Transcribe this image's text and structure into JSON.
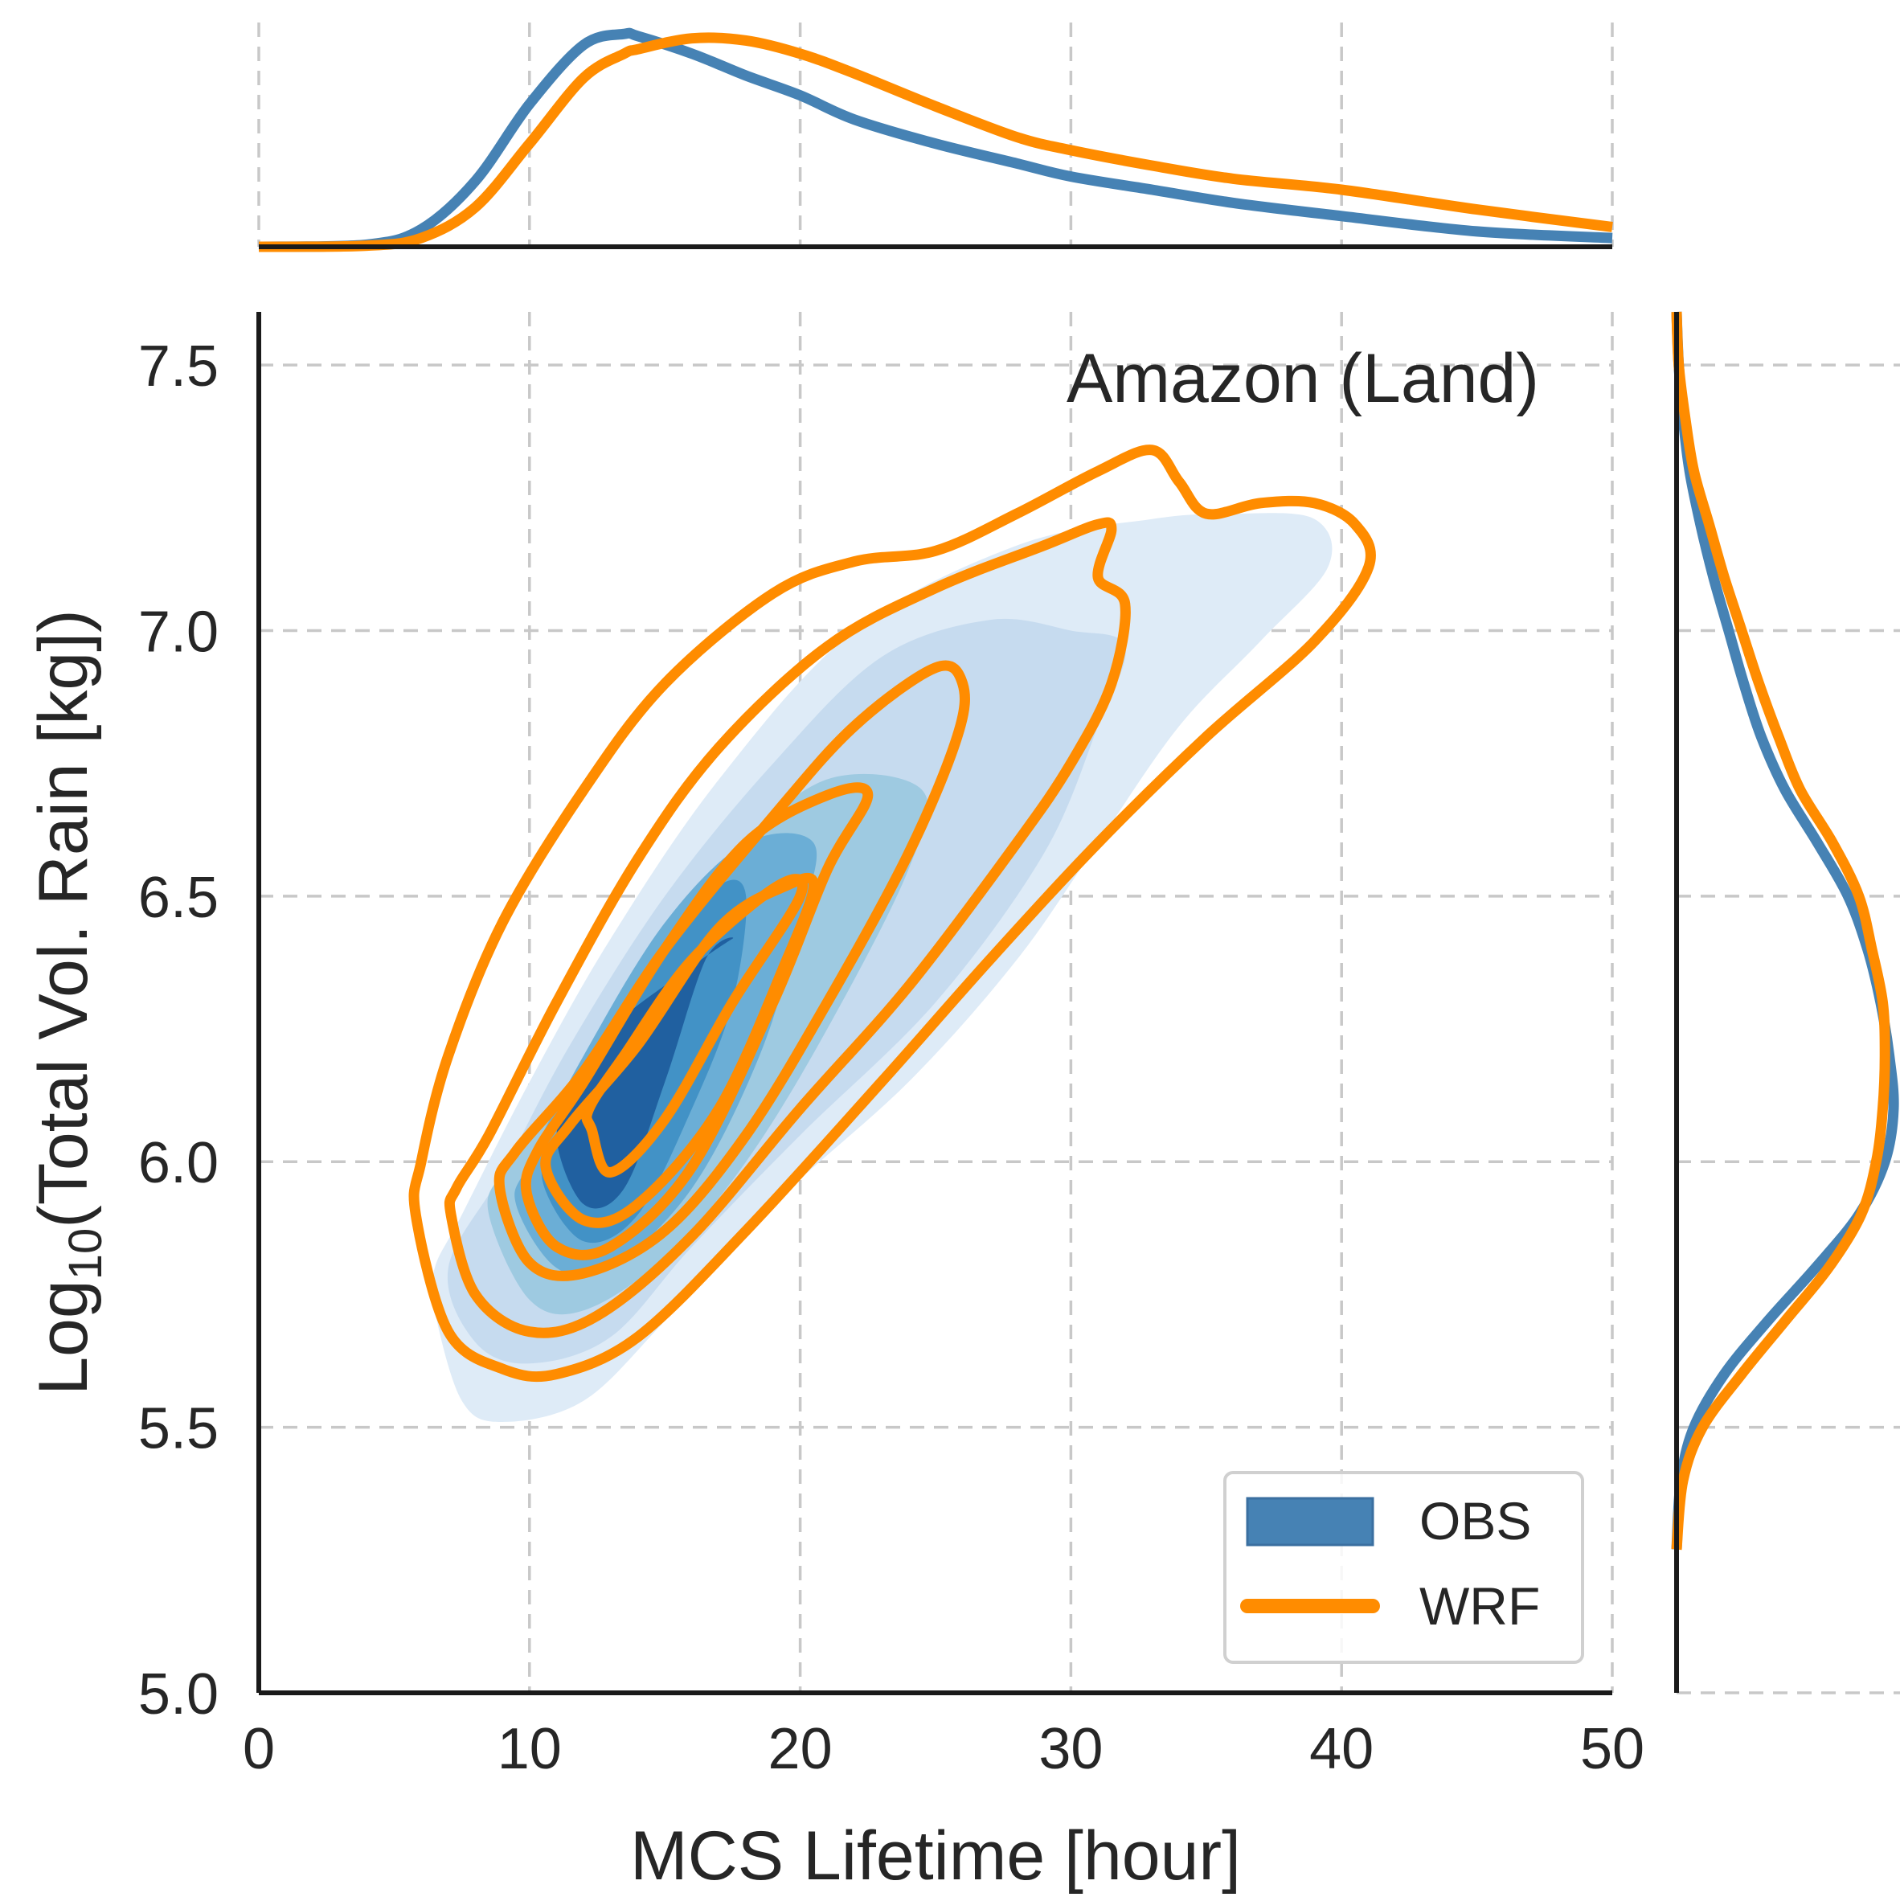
{
  "chart_data": {
    "type": "kde-contour-joint",
    "title": "",
    "annotation": "Amazon (Land)",
    "xlabel": "MCS Lifetime [hour]",
    "ylabel_prefix": "Log",
    "ylabel_subscript": "10",
    "ylabel_suffix": "(Total Vol. Rain [kg])",
    "xlim": [
      0,
      50
    ],
    "ylim": [
      5.0,
      7.6
    ],
    "x_ticks": [
      0,
      10,
      20,
      30,
      40,
      50
    ],
    "x_tick_labels": [
      "0",
      "10",
      "20",
      "30",
      "40",
      "50"
    ],
    "y_ticks": [
      5.0,
      5.5,
      6.0,
      6.5,
      7.0,
      7.5
    ],
    "y_tick_labels": [
      "5.0",
      "5.5",
      "6.0",
      "6.5",
      "7.0",
      "7.5"
    ],
    "grid": true,
    "legend": {
      "location": "lower right",
      "entries": [
        "OBS",
        "WRF"
      ]
    },
    "colors": {
      "obs": "#4682b4",
      "wrf": "#ff8c00",
      "obs_fills": [
        "#deebf7",
        "#c6dbef",
        "#9ecae1",
        "#6baed6",
        "#4292c6",
        "#2060a0"
      ]
    },
    "series": [
      {
        "name": "OBS",
        "kind": "filled_contours",
        "levels": [
          [
            [
              6.5,
              5.72
            ],
            [
              7.5,
              5.55
            ],
            [
              9,
              5.51
            ],
            [
              12,
              5.55
            ],
            [
              15,
              5.7
            ],
            [
              19,
              5.92
            ],
            [
              24,
              6.15
            ],
            [
              28,
              6.38
            ],
            [
              31,
              6.6
            ],
            [
              34,
              6.82
            ],
            [
              37,
              6.98
            ],
            [
              39.5,
              7.12
            ],
            [
              39,
              7.21
            ],
            [
              36,
              7.22
            ],
            [
              33,
              7.21
            ],
            [
              28,
              7.16
            ],
            [
              22,
              7.0
            ],
            [
              17,
              6.72
            ],
            [
              13,
              6.42
            ],
            [
              10,
              6.15
            ],
            [
              7.5,
              5.9
            ],
            [
              6.5,
              5.8
            ]
          ],
          [
            [
              7,
              5.8
            ],
            [
              8,
              5.66
            ],
            [
              10,
              5.62
            ],
            [
              13,
              5.67
            ],
            [
              16,
              5.84
            ],
            [
              20,
              6.05
            ],
            [
              25,
              6.3
            ],
            [
              29,
              6.58
            ],
            [
              31,
              6.82
            ],
            [
              32,
              6.97
            ],
            [
              30,
              7.0
            ],
            [
              27,
              7.02
            ],
            [
              23,
              6.95
            ],
            [
              19,
              6.75
            ],
            [
              15,
              6.5
            ],
            [
              11.5,
              6.22
            ],
            [
              9,
              5.98
            ]
          ],
          [
            [
              8.5,
              5.9
            ],
            [
              10,
              5.74
            ],
            [
              12,
              5.72
            ],
            [
              15,
              5.82
            ],
            [
              18,
              6.0
            ],
            [
              21,
              6.25
            ],
            [
              24,
              6.55
            ],
            [
              24.5,
              6.7
            ],
            [
              21,
              6.72
            ],
            [
              17.5,
              6.58
            ],
            [
              14,
              6.36
            ],
            [
              11,
              6.1
            ],
            [
              9,
              5.98
            ]
          ],
          [
            [
              9.5,
              5.92
            ],
            [
              11,
              5.8
            ],
            [
              13,
              5.8
            ],
            [
              16,
              5.95
            ],
            [
              18.5,
              6.2
            ],
            [
              20,
              6.45
            ],
            [
              20.5,
              6.6
            ],
            [
              18,
              6.6
            ],
            [
              15,
              6.45
            ],
            [
              12,
              6.2
            ],
            [
              10,
              6.0
            ]
          ],
          [
            [
              10.5,
              5.96
            ],
            [
              12,
              5.85
            ],
            [
              14,
              5.9
            ],
            [
              16,
              6.1
            ],
            [
              17.5,
              6.3
            ],
            [
              18,
              6.5
            ],
            [
              17,
              6.52
            ],
            [
              15,
              6.4
            ],
            [
              13,
              6.2
            ],
            [
              11,
              6.05
            ]
          ],
          [
            [
              11,
              6.05
            ],
            [
              12,
              5.92
            ],
            [
              13.5,
              5.95
            ],
            [
              15,
              6.15
            ],
            [
              16.5,
              6.38
            ],
            [
              17.5,
              6.42
            ],
            [
              15.5,
              6.35
            ],
            [
              13,
              6.25
            ],
            [
              12,
              6.15
            ]
          ]
        ]
      },
      {
        "name": "WRF",
        "kind": "line_contours",
        "levels": [
          [
            [
              5.8,
              5.9
            ],
            [
              7,
              5.68
            ],
            [
              9,
              5.61
            ],
            [
              11,
              5.6
            ],
            [
              14,
              5.67
            ],
            [
              18,
              5.87
            ],
            [
              23,
              6.15
            ],
            [
              27,
              6.38
            ],
            [
              31,
              6.6
            ],
            [
              35,
              6.8
            ],
            [
              39,
              6.98
            ],
            [
              41,
              7.12
            ],
            [
              40.5,
              7.2
            ],
            [
              39,
              7.24
            ],
            [
              37,
              7.24
            ],
            [
              35,
              7.22
            ],
            [
              34,
              7.28
            ],
            [
              33,
              7.34
            ],
            [
              31,
              7.3
            ],
            [
              28,
              7.22
            ],
            [
              25,
              7.15
            ],
            [
              22,
              7.13
            ],
            [
              19,
              7.07
            ],
            [
              15,
              6.9
            ],
            [
              12,
              6.7
            ],
            [
              9,
              6.45
            ],
            [
              7,
              6.2
            ],
            [
              6,
              6.0
            ]
          ],
          [
            [
              7.1,
              5.9
            ],
            [
              8,
              5.75
            ],
            [
              10,
              5.68
            ],
            [
              12.5,
              5.71
            ],
            [
              16,
              5.86
            ],
            [
              20,
              6.1
            ],
            [
              24,
              6.33
            ],
            [
              28,
              6.6
            ],
            [
              30,
              6.75
            ],
            [
              31.5,
              6.9
            ],
            [
              32,
              7.05
            ],
            [
              31,
              7.1
            ],
            [
              31.5,
              7.19
            ],
            [
              31,
              7.2
            ],
            [
              29,
              7.16
            ],
            [
              25,
              7.08
            ],
            [
              21,
              6.97
            ],
            [
              17,
              6.78
            ],
            [
              14,
              6.57
            ],
            [
              11,
              6.3
            ],
            [
              8.5,
              6.05
            ],
            [
              7.3,
              5.95
            ]
          ],
          [
            [
              8.9,
              5.95
            ],
            [
              10,
              5.81
            ],
            [
              12,
              5.79
            ],
            [
              15,
              5.87
            ],
            [
              18,
              6.05
            ],
            [
              21,
              6.3
            ],
            [
              24,
              6.58
            ],
            [
              25.8,
              6.8
            ],
            [
              26,
              6.9
            ],
            [
              25,
              6.93
            ],
            [
              22,
              6.82
            ],
            [
              19,
              6.65
            ],
            [
              15,
              6.4
            ],
            [
              12,
              6.17
            ],
            [
              9.5,
              6.02
            ]
          ],
          [
            [
              9.9,
              5.94
            ],
            [
              11,
              5.84
            ],
            [
              13,
              5.84
            ],
            [
              16,
              5.99
            ],
            [
              19,
              6.3
            ],
            [
              21,
              6.55
            ],
            [
              22.5,
              6.69
            ],
            [
              21,
              6.69
            ],
            [
              18,
              6.6
            ],
            [
              15,
              6.4
            ],
            [
              12,
              6.15
            ],
            [
              10.3,
              6.02
            ]
          ],
          [
            [
              10.6,
              5.99
            ],
            [
              12,
              5.89
            ],
            [
              14,
              5.92
            ],
            [
              17,
              6.1
            ],
            [
              19.5,
              6.38
            ],
            [
              20.5,
              6.52
            ],
            [
              19.5,
              6.52
            ],
            [
              17,
              6.44
            ],
            [
              14,
              6.22
            ],
            [
              11.5,
              6.07
            ]
          ],
          [
            [
              12.3,
              6.06
            ],
            [
              13,
              5.98
            ],
            [
              15,
              6.08
            ],
            [
              17.5,
              6.3
            ],
            [
              20,
              6.5
            ],
            [
              19.2,
              6.52
            ],
            [
              16,
              6.38
            ],
            [
              13.5,
              6.2
            ],
            [
              12.2,
              6.1
            ]
          ]
        ]
      }
    ],
    "marginal_x": {
      "x": [
        0,
        4,
        6,
        8,
        10,
        12,
        13.5,
        14,
        16,
        18,
        20,
        22,
        25,
        28,
        30,
        33,
        36,
        40,
        45,
        50
      ],
      "obs": [
        0.0,
        0.01,
        0.08,
        0.3,
        0.65,
        0.92,
        0.97,
        0.96,
        0.88,
        0.78,
        0.69,
        0.58,
        0.47,
        0.38,
        0.32,
        0.26,
        0.2,
        0.14,
        0.07,
        0.04
      ],
      "wrf": [
        0.0,
        0.005,
        0.04,
        0.18,
        0.47,
        0.77,
        0.88,
        0.9,
        0.95,
        0.94,
        0.88,
        0.79,
        0.64,
        0.5,
        0.44,
        0.37,
        0.31,
        0.26,
        0.17,
        0.09
      ]
    },
    "marginal_y": {
      "y": [
        5.27,
        5.4,
        5.5,
        5.6,
        5.7,
        5.8,
        5.9,
        6.0,
        6.1,
        6.2,
        6.3,
        6.4,
        6.5,
        6.6,
        6.7,
        6.8,
        6.9,
        7.0,
        7.1,
        7.2,
        7.3,
        7.4,
        7.5,
        7.6
      ],
      "obs": [
        0.0,
        0.02,
        0.08,
        0.22,
        0.42,
        0.64,
        0.84,
        0.96,
        1.0,
        0.98,
        0.94,
        0.88,
        0.79,
        0.65,
        0.5,
        0.39,
        0.31,
        0.24,
        0.17,
        0.11,
        0.06,
        0.03,
        0.01,
        0.0
      ],
      "wrf": [
        0.0,
        0.03,
        0.12,
        0.3,
        0.5,
        0.7,
        0.85,
        0.92,
        0.95,
        0.96,
        0.95,
        0.9,
        0.84,
        0.72,
        0.57,
        0.47,
        0.38,
        0.3,
        0.22,
        0.15,
        0.08,
        0.04,
        0.01,
        0.0
      ]
    }
  }
}
